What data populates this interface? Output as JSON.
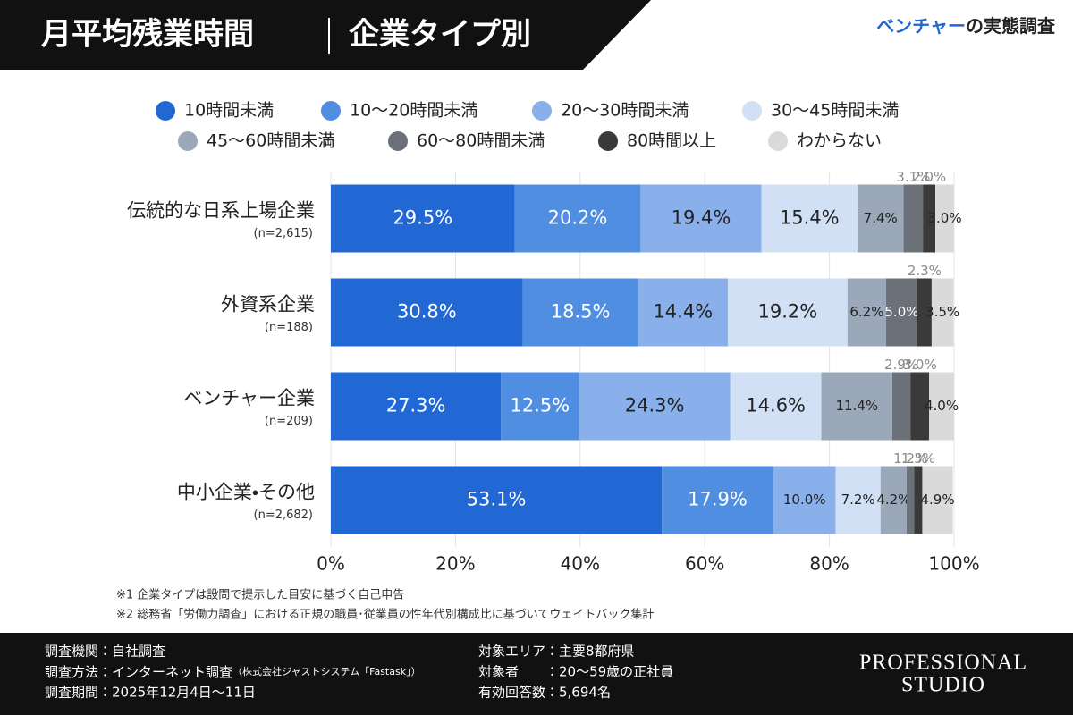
{
  "header": {
    "title": "月平均残業時間",
    "subtitle": "企業タイプ別",
    "tag_highlight": "ベンチャー",
    "tag_rest": "の実態調査"
  },
  "chart_data": {
    "type": "stacked-bar-horizontal",
    "categories": [
      "伝統的な日系上場企業",
      "外資系企業",
      "ベンチャー企業",
      "中小企業・その他"
    ],
    "sample_sizes": [
      "(n=2,615)",
      "(n=188)",
      "(n=209)",
      "(n=2,682)"
    ],
    "series": [
      {
        "name": "10時間未満",
        "color": "#2268d4",
        "values": [
          29.5,
          30.8,
          27.3,
          53.1
        ],
        "value_labels": [
          "29.5%",
          "30.8%",
          "27.3%",
          "53.1%"
        ]
      },
      {
        "name": "10〜20時間未満",
        "color": "#4f8ee0",
        "values": [
          20.2,
          18.5,
          12.5,
          17.9
        ],
        "value_labels": [
          "20.2%",
          "18.5%",
          "12.5%",
          "17.9%"
        ]
      },
      {
        "name": "20〜30時間未満",
        "color": "#89b0ea",
        "values": [
          19.4,
          14.4,
          24.3,
          10.0
        ],
        "value_labels": [
          "19.4%",
          "14.4%",
          "24.3%",
          "10.0%"
        ]
      },
      {
        "name": "30〜45時間未満",
        "color": "#d2e0f6",
        "values": [
          15.4,
          19.2,
          14.6,
          7.2
        ],
        "value_labels": [
          "15.4%",
          "19.2%",
          "14.6%",
          "7.2%"
        ]
      },
      {
        "name": "45〜60時間未満",
        "color": "#9ba8b9",
        "values": [
          7.4,
          6.2,
          11.4,
          4.2
        ],
        "value_labels": [
          "7.4%",
          "6.2%",
          "11.4%",
          "4.2%"
        ]
      },
      {
        "name": "60〜80時間未満",
        "color": "#6b7079",
        "values": [
          3.1,
          5.0,
          2.9,
          1.2
        ],
        "value_labels": [
          "3.1%",
          "5.0%",
          "2.9%",
          "1.2%"
        ]
      },
      {
        "name": "80時間以上",
        "color": "#3a3a3a",
        "values": [
          2.0,
          2.3,
          3.0,
          1.3
        ],
        "value_labels": [
          "2.0%",
          "2.3%",
          "3.0%",
          "1.3%"
        ]
      },
      {
        "name": "わからない",
        "color": "#dadada",
        "values": [
          3.0,
          3.5,
          4.0,
          4.9
        ],
        "value_labels": [
          "3.0%",
          "3.5%",
          "4.0%",
          "4.9%"
        ]
      }
    ],
    "xlim": [
      0,
      100
    ],
    "xticks": [
      {
        "value": 0,
        "label": "0%"
      },
      {
        "value": 20,
        "label": "20%"
      },
      {
        "value": 40,
        "label": "40%"
      },
      {
        "value": 60,
        "label": "60%"
      },
      {
        "value": 80,
        "label": "80%"
      },
      {
        "value": 100,
        "label": "100%"
      }
    ],
    "grid": true
  },
  "footnotes": [
    "※1 企業タイプは設問で提示した目安に基づく自己申告",
    "※2 総務省「労働力調査」における正規の職員･従業員の性年代別構成比に基づいてウェイトバック集計"
  ],
  "footer": {
    "left": [
      "調査機関：自社調査",
      "調査方法：インターネット調査",
      "調査期間：2025年12月4日〜11日"
    ],
    "method_note": "（株式会社ジャストシステム「Fastask」）",
    "right": [
      "対象エリア：主要8都府県",
      "対象者　　：20〜59歳の正社員",
      "有効回答数：5,694名"
    ],
    "logo": [
      "PROFESSIONAL",
      "STUDIO"
    ]
  }
}
